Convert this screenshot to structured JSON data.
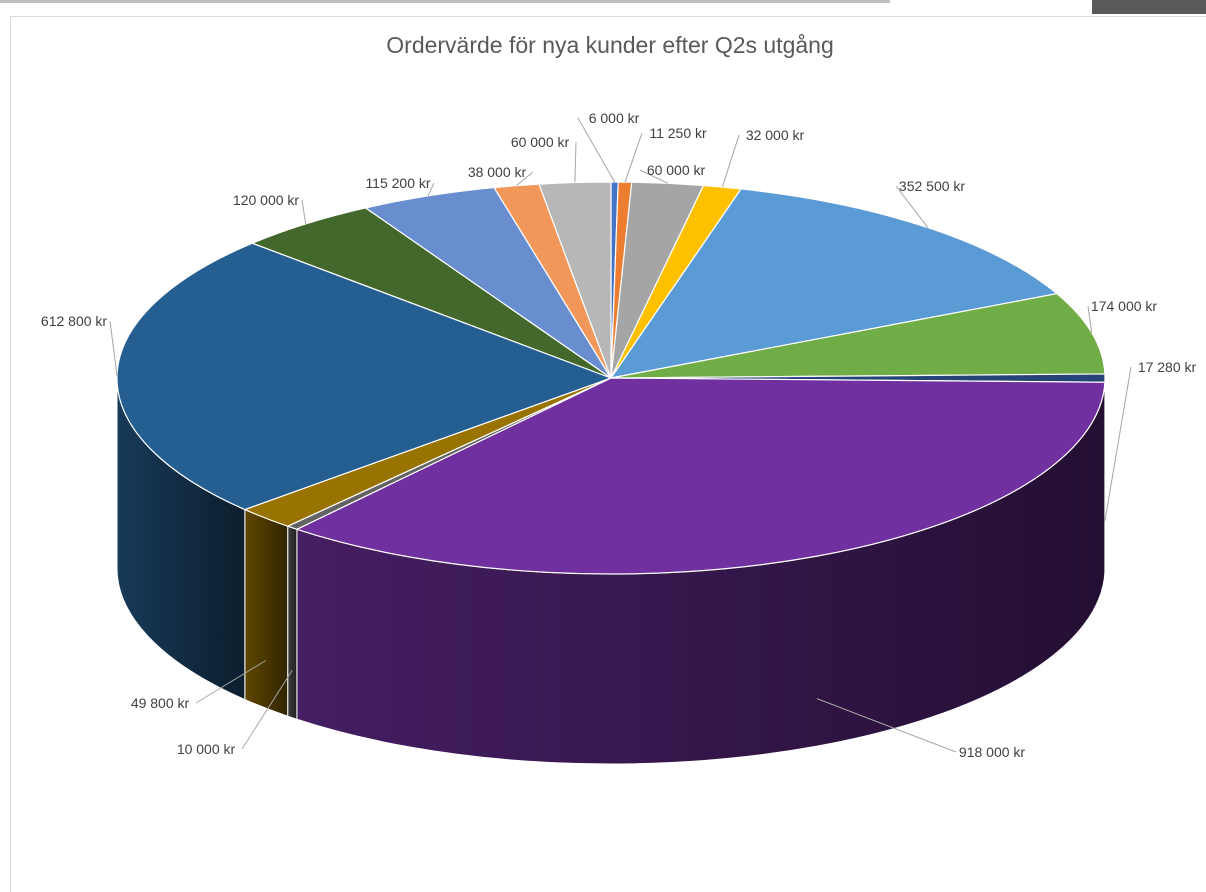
{
  "chart_data": {
    "type": "pie",
    "title": "Ordervärde för nya kunder efter Q2s utgång",
    "series": [
      {
        "values": [
          6000,
          11250,
          60000,
          32000,
          352500,
          174000,
          17280,
          918000,
          10000,
          49800,
          612800,
          120000,
          115200,
          38000,
          60000
        ]
      }
    ],
    "labels": [
      "6 000 kr",
      "11 250 kr",
      "60 000 kr",
      "32 000 kr",
      "352 500 kr",
      "174 000 kr",
      "17 280 kr",
      "918 000 kr",
      "10 000 kr",
      "49 800 kr",
      "612 800 kr",
      "120 000 kr",
      "115 200 kr",
      "38 000 kr",
      "60 000 kr"
    ],
    "colors": [
      "#4472c4",
      "#ed7d31",
      "#a5a5a5",
      "#ffc000",
      "#5b9bd5",
      "#70ad47",
      "#264478",
      "#7030a0",
      "#636363",
      "#997300",
      "#255e91",
      "#43682b",
      "#698ed0",
      "#f1975a",
      "#b7b7b7"
    ],
    "legend": "none",
    "style": "3d-pie"
  }
}
